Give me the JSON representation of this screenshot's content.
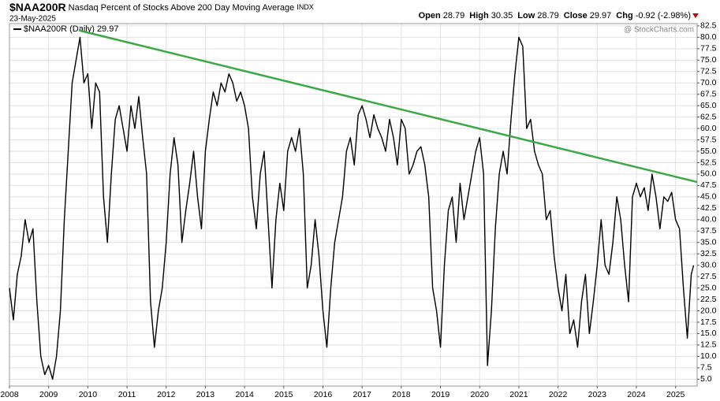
{
  "chart_data": {
    "type": "line",
    "symbol": "$NAA200R",
    "title": "Nasdaq Percent of Stocks Above 200 Day Moving Average",
    "exchange": "INDX",
    "date": "23-May-2025",
    "quote": [
      {
        "label": "Open",
        "value": 28.79
      },
      {
        "label": "High",
        "value": 30.35
      },
      {
        "label": "Low",
        "value": 28.79
      },
      {
        "label": "Close",
        "value": 29.97
      },
      {
        "label": "Chg",
        "value": "-0.92 (-2.98%)"
      }
    ],
    "watermark": "@ StockCharts.com",
    "legend_value": 29.97,
    "x": [
      2008,
      2008.1,
      2008.2,
      2008.3,
      2008.4,
      2008.5,
      2008.6,
      2008.7,
      2008.8,
      2008.9,
      2009,
      2009.1,
      2009.2,
      2009.3,
      2009.4,
      2009.5,
      2009.6,
      2009.7,
      2009.8,
      2009.9,
      2010,
      2010.1,
      2010.2,
      2010.3,
      2010.4,
      2010.5,
      2010.6,
      2010.7,
      2010.8,
      2010.9,
      2011,
      2011.1,
      2011.2,
      2011.3,
      2011.4,
      2011.5,
      2011.6,
      2011.7,
      2011.8,
      2011.9,
      2012,
      2012.1,
      2012.2,
      2012.3,
      2012.4,
      2012.5,
      2012.6,
      2012.7,
      2012.8,
      2012.9,
      2013,
      2013.1,
      2013.2,
      2013.3,
      2013.4,
      2013.5,
      2013.6,
      2013.7,
      2013.8,
      2013.9,
      2014,
      2014.1,
      2014.2,
      2014.3,
      2014.4,
      2014.5,
      2014.6,
      2014.7,
      2014.8,
      2014.9,
      2015,
      2015.1,
      2015.2,
      2015.3,
      2015.4,
      2015.5,
      2015.6,
      2015.7,
      2015.8,
      2015.9,
      2016,
      2016.1,
      2016.2,
      2016.3,
      2016.4,
      2016.5,
      2016.6,
      2016.7,
      2016.8,
      2016.9,
      2017,
      2017.1,
      2017.2,
      2017.3,
      2017.4,
      2017.5,
      2017.6,
      2017.7,
      2017.8,
      2017.9,
      2018,
      2018.1,
      2018.2,
      2018.3,
      2018.4,
      2018.5,
      2018.6,
      2018.7,
      2018.8,
      2018.9,
      2019,
      2019.1,
      2019.2,
      2019.3,
      2019.4,
      2019.5,
      2019.6,
      2019.7,
      2019.8,
      2019.9,
      2020,
      2020.1,
      2020.2,
      2020.3,
      2020.4,
      2020.5,
      2020.6,
      2020.7,
      2020.8,
      2020.9,
      2021,
      2021.1,
      2021.2,
      2021.3,
      2021.4,
      2021.5,
      2021.6,
      2021.7,
      2021.8,
      2021.9,
      2022,
      2022.1,
      2022.2,
      2022.3,
      2022.4,
      2022.5,
      2022.6,
      2022.7,
      2022.8,
      2022.9,
      2023,
      2023.1,
      2023.2,
      2023.3,
      2023.4,
      2023.5,
      2023.6,
      2023.7,
      2023.8,
      2023.9,
      2024,
      2024.1,
      2024.2,
      2024.3,
      2024.4,
      2024.5,
      2024.6,
      2024.7,
      2024.8,
      2024.9,
      2025,
      2025.1,
      2025.2,
      2025.3,
      2025.4,
      2025.46
    ],
    "series": [
      {
        "name": "$NAA200R (Daily)",
        "color": "#000000",
        "values": [
          25,
          18,
          28,
          32,
          40,
          35,
          38,
          22,
          10,
          6,
          8,
          5,
          10,
          20,
          40,
          55,
          70,
          75,
          80,
          70,
          72,
          60,
          70,
          68,
          45,
          35,
          50,
          62,
          65,
          60,
          55,
          65,
          60,
          67,
          58,
          50,
          22,
          12,
          20,
          25,
          35,
          50,
          58,
          52,
          35,
          42,
          48,
          55,
          45,
          38,
          55,
          62,
          68,
          65,
          70,
          68,
          72,
          70,
          66,
          68,
          65,
          60,
          45,
          38,
          50,
          55,
          40,
          25,
          40,
          48,
          42,
          55,
          58,
          55,
          60,
          50,
          25,
          30,
          40,
          32,
          20,
          12,
          25,
          35,
          40,
          45,
          55,
          58,
          52,
          63,
          65,
          62,
          58,
          63,
          60,
          58,
          55,
          62,
          58,
          52,
          62,
          60,
          50,
          52,
          55,
          56,
          52,
          45,
          25,
          20,
          12,
          30,
          42,
          45,
          35,
          48,
          40,
          45,
          50,
          55,
          58,
          50,
          8,
          20,
          38,
          50,
          55,
          50,
          62,
          72,
          80,
          78,
          60,
          62,
          55,
          52,
          50,
          40,
          42,
          32,
          25,
          20,
          28,
          15,
          18,
          12,
          22,
          28,
          15,
          22,
          30,
          40,
          30,
          28,
          35,
          45,
          40,
          30,
          22,
          45,
          48,
          45,
          47,
          42,
          50,
          45,
          38,
          45,
          44,
          46,
          40,
          38,
          25,
          14,
          28,
          29.97
        ]
      }
    ],
    "trendline": {
      "x": [
        2009.78,
        2025.55
      ],
      "y": [
        81.5,
        48.25
      ],
      "color": "#3aa845"
    },
    "xlim": [
      2008,
      2025.55
    ],
    "ylim": [
      3.5,
      83
    ],
    "xticks": [
      2008,
      2009,
      2010,
      2011,
      2012,
      2013,
      2014,
      2015,
      2016,
      2017,
      2018,
      2019,
      2020,
      2021,
      2022,
      2023,
      2024,
      2025
    ],
    "yticks": [
      {
        "value": 5,
        "label": "5.0"
      },
      7.5,
      {
        "value": 10,
        "label": "10.0"
      },
      12.5,
      {
        "value": 15,
        "label": "15.0"
      },
      17.5,
      {
        "value": 20,
        "label": "20.0"
      },
      22.5,
      {
        "value": 25,
        "label": "25.0"
      },
      27.5,
      {
        "value": 30,
        "label": "30.0"
      },
      32.5,
      {
        "value": 35,
        "label": "35.0"
      },
      37.5,
      {
        "value": 40,
        "label": "40.0"
      },
      42.5,
      {
        "value": 45,
        "label": "45.0"
      },
      47.5,
      {
        "value": 50,
        "label": "50.0"
      },
      52.5,
      {
        "value": 55,
        "label": "55.0"
      },
      57.5,
      {
        "value": 60,
        "label": "60.0"
      },
      62.5,
      {
        "value": 65,
        "label": "65.0"
      },
      67.5,
      {
        "value": 70,
        "label": "70.0"
      },
      72.5,
      {
        "value": 75,
        "label": "75.0"
      },
      77.5,
      {
        "value": 80,
        "label": "80.0"
      },
      82.5
    ],
    "grid": true
  }
}
